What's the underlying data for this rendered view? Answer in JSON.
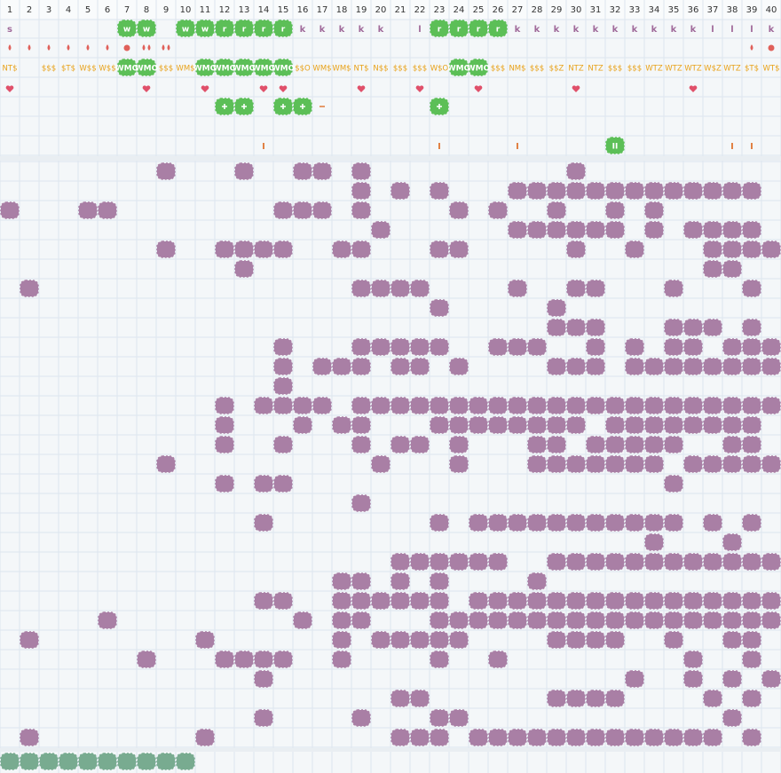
{
  "columns": [
    1,
    2,
    3,
    4,
    5,
    6,
    7,
    8,
    9,
    10,
    11,
    12,
    13,
    14,
    15,
    16,
    17,
    18,
    19,
    20,
    21,
    22,
    23,
    24,
    25,
    26,
    27,
    28,
    29,
    30,
    31,
    32,
    33,
    34,
    35,
    36,
    37,
    38,
    39,
    40
  ],
  "letters": [
    {
      "col": 1,
      "text": "s"
    },
    {
      "col": 7,
      "text": "w",
      "badge": true
    },
    {
      "col": 8,
      "text": "w",
      "badge": true
    },
    {
      "col": 10,
      "text": "w",
      "badge": true
    },
    {
      "col": 11,
      "text": "w",
      "badge": true
    },
    {
      "col": 12,
      "text": "r",
      "badge": true
    },
    {
      "col": 13,
      "text": "r",
      "badge": true
    },
    {
      "col": 14,
      "text": "r",
      "badge": true
    },
    {
      "col": 15,
      "text": "r",
      "badge": true
    },
    {
      "col": 16,
      "text": "k"
    },
    {
      "col": 17,
      "text": "k"
    },
    {
      "col": 18,
      "text": "k"
    },
    {
      "col": 19,
      "text": "k"
    },
    {
      "col": 20,
      "text": "k"
    },
    {
      "col": 22,
      "text": "l"
    },
    {
      "col": 23,
      "text": "r",
      "badge": true
    },
    {
      "col": 24,
      "text": "r",
      "badge": true
    },
    {
      "col": 25,
      "text": "r",
      "badge": true
    },
    {
      "col": 26,
      "text": "r",
      "badge": true
    },
    {
      "col": 27,
      "text": "k"
    },
    {
      "col": 28,
      "text": "k"
    },
    {
      "col": 29,
      "text": "k"
    },
    {
      "col": 30,
      "text": "k"
    },
    {
      "col": 31,
      "text": "k"
    },
    {
      "col": 32,
      "text": "k"
    },
    {
      "col": 33,
      "text": "k"
    },
    {
      "col": 34,
      "text": "k"
    },
    {
      "col": 35,
      "text": "k"
    },
    {
      "col": 36,
      "text": "k"
    },
    {
      "col": 37,
      "text": "l"
    },
    {
      "col": 38,
      "text": "l"
    },
    {
      "col": 39,
      "text": "l"
    },
    {
      "col": 40,
      "text": "k"
    }
  ],
  "drop_cols": [
    1,
    2,
    3,
    4,
    5,
    6,
    39
  ],
  "double_drop_cols": [
    8,
    9
  ],
  "dot_cols": [
    7,
    40
  ],
  "codes": [
    {
      "col": 1,
      "text": "NT$"
    },
    {
      "col": 3,
      "text": "$$$"
    },
    {
      "col": 4,
      "text": "$T$"
    },
    {
      "col": 5,
      "text": "W$$"
    },
    {
      "col": 6,
      "text": "W$$"
    },
    {
      "col": 7,
      "text": "WMO",
      "badge": true
    },
    {
      "col": 8,
      "text": "WMO",
      "badge": true
    },
    {
      "col": 9,
      "text": "$$$"
    },
    {
      "col": 10,
      "text": "WM$"
    },
    {
      "col": 11,
      "text": "WMO",
      "badge": true
    },
    {
      "col": 12,
      "text": "WMO",
      "badge": true
    },
    {
      "col": 13,
      "text": "WMO",
      "badge": true
    },
    {
      "col": 14,
      "text": "WMO",
      "badge": true
    },
    {
      "col": 15,
      "text": "WMO",
      "badge": true
    },
    {
      "col": 16,
      "text": "$$O"
    },
    {
      "col": 17,
      "text": "WM$"
    },
    {
      "col": 18,
      "text": "WM$"
    },
    {
      "col": 19,
      "text": "NT$"
    },
    {
      "col": 20,
      "text": "N$$"
    },
    {
      "col": 21,
      "text": "$$$"
    },
    {
      "col": 22,
      "text": "$$$"
    },
    {
      "col": 23,
      "text": "W$O"
    },
    {
      "col": 24,
      "text": "WMO",
      "badge": true
    },
    {
      "col": 25,
      "text": "WMO",
      "badge": true
    },
    {
      "col": 26,
      "text": "$$$"
    },
    {
      "col": 27,
      "text": "NM$"
    },
    {
      "col": 28,
      "text": "$$$"
    },
    {
      "col": 29,
      "text": "$$Z"
    },
    {
      "col": 30,
      "text": "NTZ"
    },
    {
      "col": 31,
      "text": "NTZ"
    },
    {
      "col": 32,
      "text": "$$$"
    },
    {
      "col": 33,
      "text": "$$$"
    },
    {
      "col": 34,
      "text": "WTZ"
    },
    {
      "col": 35,
      "text": "WTZ"
    },
    {
      "col": 36,
      "text": "WTZ"
    },
    {
      "col": 37,
      "text": "W$Z"
    },
    {
      "col": 38,
      "text": "WTZ"
    },
    {
      "col": 39,
      "text": "$T$"
    },
    {
      "col": 40,
      "text": "WT$"
    }
  ],
  "heart_cols": [
    1,
    8,
    11,
    14,
    15,
    19,
    22,
    25,
    30,
    36
  ],
  "plus_cols": [
    12,
    13,
    15,
    16,
    23
  ],
  "dash_cols": [
    17
  ],
  "ticks": [
    {
      "col": 14,
      "text": "I"
    },
    {
      "col": 23,
      "text": "I"
    },
    {
      "col": 27,
      "text": "I"
    },
    {
      "col": 32,
      "text": "II",
      "badge": true
    },
    {
      "col": 38,
      "text": "I"
    },
    {
      "col": 39,
      "text": "I"
    }
  ],
  "grid": {
    "rows": [
      [
        9,
        13,
        16,
        17,
        19,
        30
      ],
      [
        19,
        21,
        23,
        27,
        28,
        29,
        30,
        31,
        32,
        33,
        34,
        35,
        36,
        37,
        38,
        39
      ],
      [
        1,
        5,
        6,
        15,
        16,
        17,
        19,
        24,
        26,
        29,
        32,
        34
      ],
      [
        20,
        27,
        28,
        29,
        30,
        31,
        32,
        34,
        36,
        37,
        38,
        39
      ],
      [
        9,
        12,
        13,
        14,
        15,
        18,
        19,
        23,
        24,
        30,
        33,
        37,
        38,
        39,
        40
      ],
      [
        13,
        37,
        38
      ],
      [
        2,
        19,
        20,
        21,
        22,
        27,
        30,
        31,
        35,
        39
      ],
      [
        23,
        29
      ],
      [
        29,
        30,
        31,
        35,
        36,
        37,
        39
      ],
      [
        15,
        19,
        20,
        21,
        22,
        23,
        26,
        27,
        28,
        31,
        33,
        35,
        36,
        38,
        39,
        40
      ],
      [
        15,
        17,
        18,
        19,
        21,
        22,
        24,
        29,
        30,
        31,
        33,
        34,
        35,
        36,
        37,
        38,
        39,
        40
      ],
      [
        15
      ],
      [
        12,
        14,
        15,
        16,
        17,
        19,
        20,
        21,
        22,
        23,
        24,
        25,
        26,
        27,
        28,
        29,
        30,
        31,
        32,
        33,
        34,
        35,
        36,
        37,
        38,
        39,
        40
      ],
      [
        12,
        16,
        18,
        19,
        23,
        24,
        25,
        26,
        27,
        28,
        29,
        30,
        32,
        33,
        34,
        35,
        36,
        37,
        38,
        39
      ],
      [
        12,
        15,
        19,
        21,
        22,
        24,
        28,
        29,
        31,
        32,
        33,
        34,
        35,
        38,
        39
      ],
      [
        9,
        20,
        24,
        28,
        29,
        30,
        31,
        32,
        33,
        34,
        36,
        37,
        38,
        39,
        40
      ],
      [
        12,
        14,
        15,
        35
      ],
      [
        19
      ],
      [
        14,
        23,
        25,
        26,
        27,
        28,
        29,
        30,
        31,
        32,
        33,
        34,
        35,
        37,
        39
      ],
      [
        34,
        38
      ],
      [
        21,
        22,
        23,
        24,
        25,
        26,
        29,
        30,
        31,
        32,
        33,
        34,
        35,
        36,
        37,
        38,
        39,
        40
      ],
      [
        18,
        19,
        21,
        23,
        28
      ],
      [
        14,
        15,
        18,
        19,
        20,
        21,
        22,
        23,
        25,
        26,
        27,
        28,
        29,
        30,
        31,
        32,
        33,
        34,
        35,
        36,
        37,
        38,
        39,
        40
      ],
      [
        6,
        16,
        18,
        19,
        23,
        24,
        25,
        26,
        27,
        28,
        29,
        30,
        31,
        32,
        33,
        34,
        35,
        36,
        37,
        38,
        39,
        40
      ],
      [
        2,
        11,
        18,
        20,
        21,
        22,
        23,
        24,
        29,
        30,
        31,
        32,
        35,
        38,
        39
      ],
      [
        8,
        12,
        13,
        14,
        15,
        18,
        23,
        26,
        36,
        39
      ],
      [
        14,
        33,
        36,
        38,
        40
      ],
      [
        21,
        22,
        29,
        30,
        31,
        32,
        37,
        39
      ],
      [
        14,
        19,
        23,
        24,
        38
      ],
      [
        2,
        11,
        21,
        22,
        23,
        25,
        26,
        27,
        28,
        29,
        30,
        31,
        32,
        33,
        34,
        35,
        36,
        37,
        39
      ]
    ]
  },
  "bottom_cols": [
    1,
    2,
    3,
    4,
    5,
    6,
    7,
    8,
    9,
    10
  ]
}
